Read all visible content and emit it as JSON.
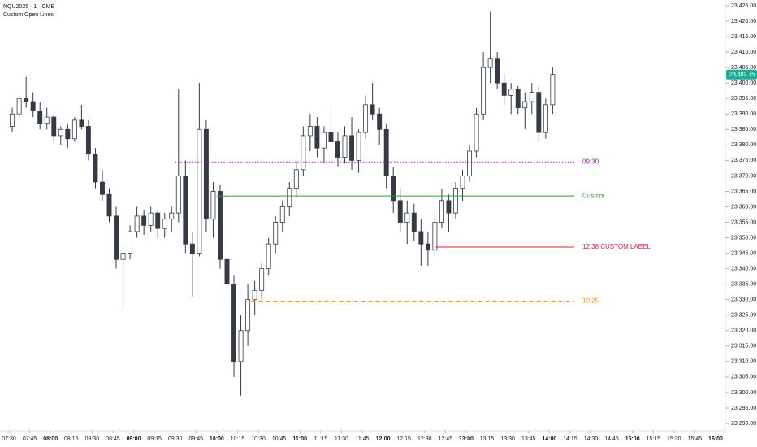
{
  "chart_data": {
    "type": "candlestick",
    "title": "NQU2025 · 1 · CME",
    "subtitle": "Custom Open Lines",
    "x": [
      "07:30",
      "07:35",
      "07:40",
      "07:45",
      "07:50",
      "07:55",
      "08:00",
      "08:05",
      "08:10",
      "08:15",
      "08:20",
      "08:25",
      "08:30",
      "08:35",
      "08:40",
      "08:45",
      "08:50",
      "08:55",
      "09:00",
      "09:05",
      "09:10",
      "09:15",
      "09:20",
      "09:25",
      "09:30",
      "09:35",
      "09:40",
      "09:45",
      "09:50",
      "09:55",
      "10:00",
      "10:05",
      "10:10",
      "10:15",
      "10:20",
      "10:25",
      "10:30",
      "10:35",
      "10:40",
      "10:45",
      "10:50",
      "10:55",
      "11:00",
      "11:05",
      "11:10",
      "11:15",
      "11:20",
      "11:25",
      "11:30",
      "11:35",
      "11:40",
      "11:45",
      "11:50",
      "11:55",
      "12:00",
      "12:05",
      "12:10",
      "12:15",
      "12:20",
      "12:25",
      "12:30",
      "12:35",
      "12:40",
      "12:45",
      "12:50",
      "12:55",
      "13:00",
      "13:05",
      "13:10",
      "13:15",
      "13:20",
      "13:25",
      "13:30",
      "13:35",
      "13:40",
      "13:45",
      "13:50",
      "13:55",
      "14:00"
    ],
    "open": [
      23386,
      23390,
      23395,
      23394,
      23391,
      23387,
      23389,
      23383,
      23385,
      23382,
      23388,
      23386,
      23377,
      23368,
      23364,
      23357,
      23343,
      23345,
      23352,
      23357,
      23354,
      23358,
      23353,
      23356,
      23358,
      23370,
      23348,
      23345,
      23385,
      23356,
      23365,
      23343,
      23335,
      23310,
      23320,
      23330,
      23333,
      23340,
      23348,
      23355,
      23360,
      23366,
      23372,
      23383,
      23386,
      23379,
      23384,
      23381,
      23376,
      23383,
      23375,
      23384,
      23393,
      23390,
      23385,
      23370,
      23362,
      23355,
      23358,
      23352,
      23348,
      23346,
      23355,
      23362,
      23358,
      23366,
      23370,
      23378,
      23390,
      23405,
      23408,
      23400,
      23396,
      23398,
      23392,
      23394,
      23397,
      23384,
      23393
    ],
    "high": [
      23392,
      23396,
      23402,
      23397,
      23394,
      23392,
      23390,
      23386,
      23387,
      23389,
      23393,
      23388,
      23379,
      23372,
      23366,
      23360,
      23348,
      23354,
      23360,
      23359,
      23360,
      23359,
      23358,
      23360,
      23398,
      23375,
      23352,
      23400,
      23388,
      23368,
      23367,
      23348,
      23338,
      23325,
      23335,
      23336,
      23342,
      23350,
      23357,
      23362,
      23368,
      23375,
      23386,
      23390,
      23389,
      23386,
      23392,
      23384,
      23386,
      23389,
      23385,
      23396,
      23400,
      23392,
      23387,
      23373,
      23366,
      23362,
      23361,
      23356,
      23352,
      23358,
      23366,
      23364,
      23368,
      23372,
      23380,
      23392,
      23410,
      23423,
      23410,
      23403,
      23400,
      23399,
      23397,
      23400,
      23399,
      23395,
      23405
    ],
    "low": [
      23384,
      23388,
      23392,
      23389,
      23385,
      23385,
      23381,
      23380,
      23379,
      23381,
      23385,
      23375,
      23366,
      23362,
      23355,
      23340,
      23327,
      23343,
      23350,
      23351,
      23352,
      23350,
      23350,
      23352,
      23355,
      23345,
      23331,
      23344,
      23352,
      23350,
      23340,
      23330,
      23305,
      23299,
      23315,
      23325,
      23330,
      23338,
      23345,
      23352,
      23357,
      23363,
      23370,
      23378,
      23376,
      23374,
      23380,
      23373,
      23374,
      23372,
      23371,
      23382,
      23388,
      23380,
      23366,
      23358,
      23352,
      23348,
      23349,
      23341,
      23341,
      23344,
      23353,
      23352,
      23356,
      23362,
      23368,
      23376,
      23388,
      23400,
      23398,
      23393,
      23390,
      23390,
      23385,
      23390,
      23381,
      23382,
      23390
    ],
    "close": [
      23390,
      23395,
      23394,
      23391,
      23387,
      23389,
      23383,
      23385,
      23382,
      23388,
      23386,
      23377,
      23368,
      23364,
      23357,
      23343,
      23345,
      23352,
      23357,
      23354,
      23358,
      23353,
      23356,
      23358,
      23370,
      23348,
      23345,
      23385,
      23356,
      23365,
      23343,
      23335,
      23310,
      23320,
      23330,
      23333,
      23340,
      23348,
      23355,
      23360,
      23366,
      23372,
      23383,
      23386,
      23379,
      23384,
      23381,
      23376,
      23383,
      23375,
      23384,
      23393,
      23390,
      23385,
      23370,
      23362,
      23355,
      23358,
      23352,
      23348,
      23346,
      23355,
      23362,
      23358,
      23366,
      23370,
      23378,
      23390,
      23405,
      23408,
      23400,
      23396,
      23398,
      23392,
      23394,
      23397,
      23384,
      23393,
      23402.75
    ],
    "up_color": "#ffffff",
    "down_color": "#363a45",
    "ylim": [
      23290,
      23425
    ],
    "yticks": [
      {
        "value": 23290,
        "label": "23,290.00"
      },
      {
        "value": 23295,
        "label": "23,295.00"
      },
      {
        "value": 23300,
        "label": "23,300.00"
      },
      {
        "value": 23305,
        "label": "23,305.00"
      },
      {
        "value": 23310,
        "label": "23,310.00"
      },
      {
        "value": 23315,
        "label": "23,315.00"
      },
      {
        "value": 23320,
        "label": "23,320.00"
      },
      {
        "value": 23325,
        "label": "23,325.00"
      },
      {
        "value": 23330,
        "label": "23,330.00"
      },
      {
        "value": 23335,
        "label": "23,335.00"
      },
      {
        "value": 23340,
        "label": "23,340.00"
      },
      {
        "value": 23345,
        "label": "23,345.00"
      },
      {
        "value": 23350,
        "label": "23,350.00"
      },
      {
        "value": 23355,
        "label": "23,355.00"
      },
      {
        "value": 23360,
        "label": "23,360.00"
      },
      {
        "value": 23365,
        "label": "23,365.00"
      },
      {
        "value": 23370,
        "label": "23,370.00"
      },
      {
        "value": 23375,
        "label": "23,375.00"
      },
      {
        "value": 23380,
        "label": "23,380.00"
      },
      {
        "value": 23385,
        "label": "23,385.00"
      },
      {
        "value": 23390,
        "label": "23,390.00"
      },
      {
        "value": 23395,
        "label": "23,395.00"
      },
      {
        "value": 23400,
        "label": "23,400.00"
      },
      {
        "value": 23405,
        "label": "23,405.00"
      },
      {
        "value": 23410,
        "label": "23,410.00"
      },
      {
        "value": 23415,
        "label": "23,415.00"
      },
      {
        "value": 23420,
        "label": "23,420.00"
      },
      {
        "value": 23425,
        "label": "23,425.00"
      }
    ],
    "xlim": [
      "07:30",
      "16:00"
    ],
    "xticks": [
      "07:30",
      "07:45",
      "08:00",
      "08:15",
      "08:30",
      "08:45",
      "09:00",
      "09:15",
      "09:30",
      "09:45",
      "10:00",
      "10:15",
      "10:30",
      "10:45",
      "11:00",
      "11:15",
      "11:30",
      "11:45",
      "12:00",
      "12:15",
      "12:30",
      "12:45",
      "13:00",
      "13:15",
      "13:30",
      "13:45",
      "14:00",
      "14:15",
      "14:30",
      "14:45",
      "15:00",
      "15:15",
      "15:30",
      "15:45",
      "16:00"
    ],
    "lines_end": "14:18",
    "lines": [
      {
        "label": "09:30",
        "value": 23374.5,
        "start": "09:30",
        "color": "#9c27b0",
        "style": "dotted"
      },
      {
        "label": "Custom",
        "value": 23363.5,
        "start": "10:00",
        "color": "#2e9e3e",
        "style": "solid"
      },
      {
        "label": "12:38 CUSTOM LABEL",
        "value": 23347,
        "start": "12:38",
        "color": "#e0203a",
        "style": "solid"
      },
      {
        "label": "10:25",
        "value": 23329.5,
        "start": "10:25",
        "color": "#ff9800",
        "style": "dashed"
      }
    ],
    "last_price": {
      "value": 23402.75,
      "label": "23,402.75",
      "color": "#22ab94"
    }
  }
}
